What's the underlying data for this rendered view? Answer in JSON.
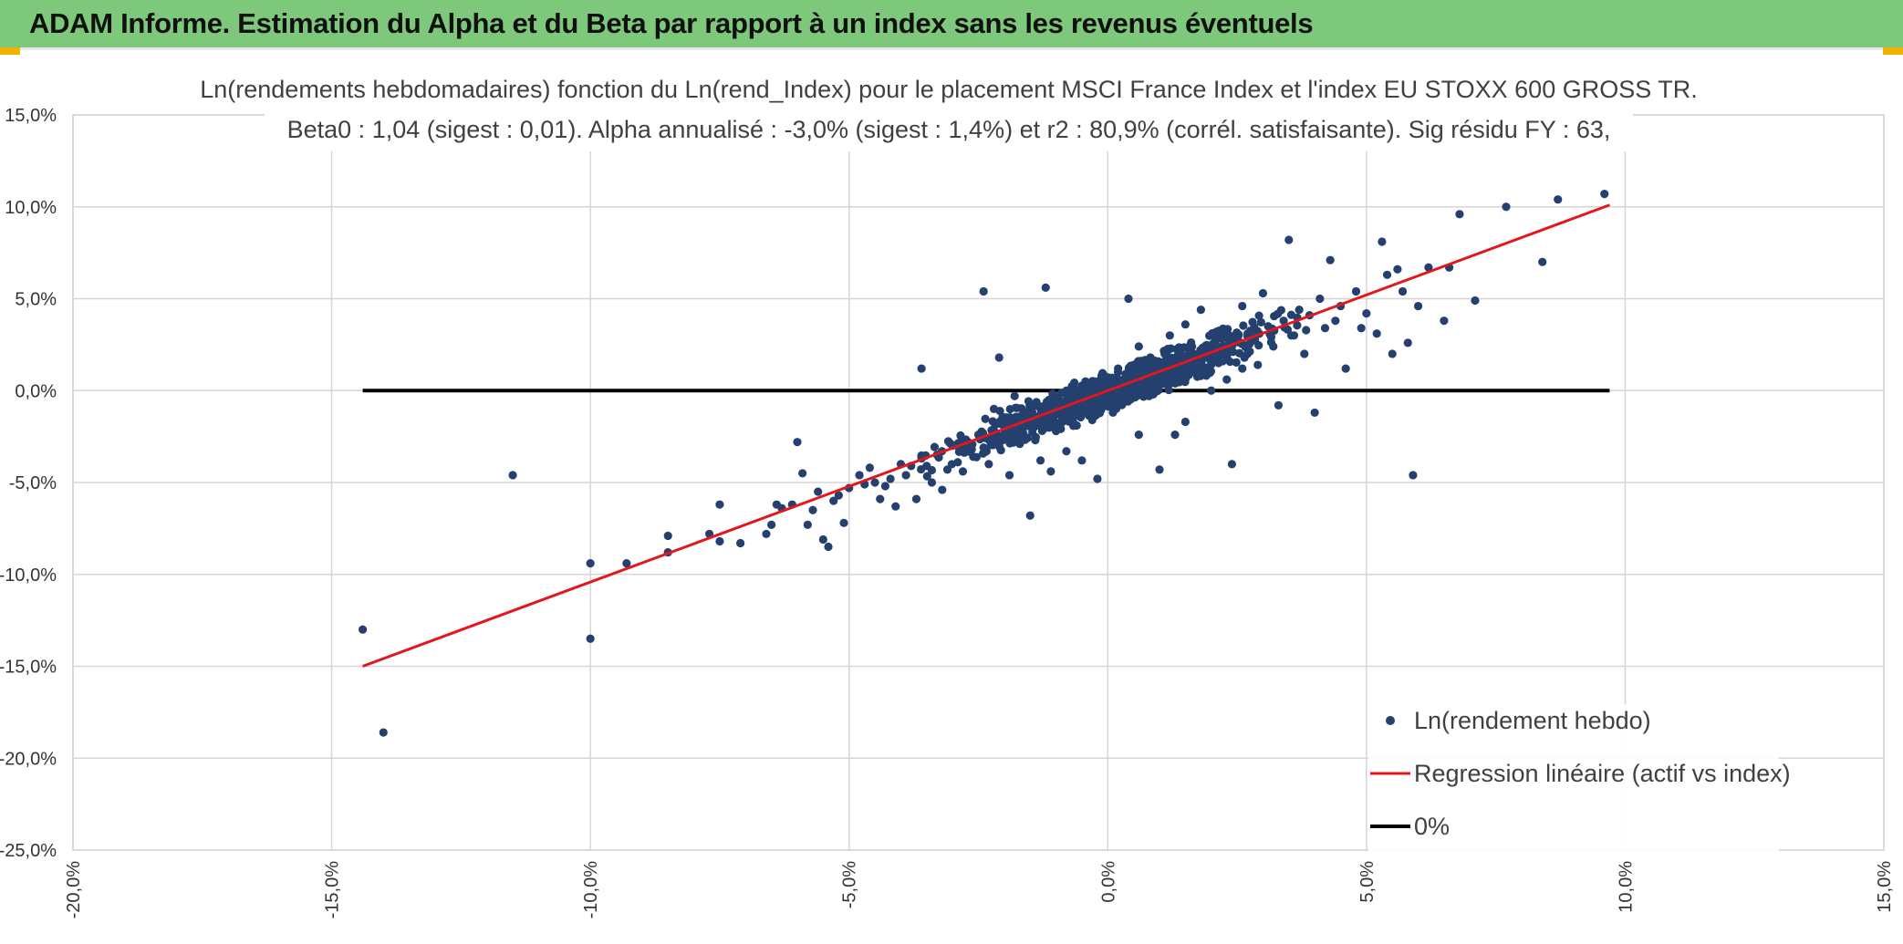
{
  "banner": {
    "title": "ADAM Informe. Estimation du Alpha et du Beta par rapport à un index sans les revenus éventuels",
    "background": "#7dc87a",
    "corner_color": "#f0b400"
  },
  "chart_data": {
    "type": "scatter",
    "title": "Ln(rendements hebdomadaires) fonction du Ln(rend_Index) pour le placement MSCI France Index et l'index EU STOXX 600 GROSS TR.",
    "subtitle": "Beta0 : 1,04 (sigest : 0,01). Alpha annualisé : -3,0% (sigest : 1,4%) et r2 : 80,9% (corrél. satisfaisante). Sig résidu FY : 63,",
    "xlim": [
      -0.2,
      0.15
    ],
    "ylim": [
      -0.25,
      0.15
    ],
    "x_ticks": [
      -0.2,
      -0.15,
      -0.1,
      -0.05,
      0.0,
      0.05,
      0.1,
      0.15
    ],
    "y_ticks": [
      -0.25,
      -0.2,
      -0.15,
      -0.1,
      -0.05,
      0.0,
      0.05,
      0.1,
      0.15
    ],
    "x_tick_labels": [
      "-20,0%",
      "-15,0%",
      "-10,0%",
      "-5,0%",
      "0,0%",
      "5,0%",
      "10,0%",
      "15,0%"
    ],
    "y_tick_labels": [
      "-25,0%",
      "-20,0%",
      "-15,0%",
      "-10,0%",
      "-5,0%",
      "0,0%",
      "5,0%",
      "10,0%",
      "15,0%"
    ],
    "grid": true,
    "legend_position": "bottom-right",
    "series": [
      {
        "name": "Ln(rendement hebdo)",
        "kind": "points",
        "color": "#24406e",
        "points": [
          [
            -0.144,
            -0.13
          ],
          [
            -0.14,
            -0.186
          ],
          [
            -0.115,
            -0.046
          ],
          [
            -0.1,
            -0.094
          ],
          [
            -0.1,
            -0.135
          ],
          [
            -0.093,
            -0.094
          ],
          [
            -0.085,
            -0.079
          ],
          [
            -0.085,
            -0.088
          ],
          [
            -0.077,
            -0.078
          ],
          [
            -0.075,
            -0.062
          ],
          [
            -0.075,
            -0.082
          ],
          [
            -0.071,
            -0.083
          ],
          [
            -0.066,
            -0.078
          ],
          [
            -0.065,
            -0.073
          ],
          [
            -0.064,
            -0.062
          ],
          [
            -0.063,
            -0.064
          ],
          [
            -0.061,
            -0.062
          ],
          [
            -0.06,
            -0.028
          ],
          [
            -0.059,
            -0.045
          ],
          [
            -0.058,
            -0.073
          ],
          [
            -0.057,
            -0.065
          ],
          [
            -0.056,
            -0.055
          ],
          [
            -0.055,
            -0.081
          ],
          [
            -0.054,
            -0.085
          ],
          [
            -0.053,
            -0.06
          ],
          [
            -0.052,
            -0.057
          ],
          [
            -0.051,
            -0.072
          ],
          [
            -0.05,
            -0.053
          ],
          [
            -0.048,
            -0.046
          ],
          [
            -0.047,
            -0.051
          ],
          [
            -0.046,
            -0.042
          ],
          [
            -0.045,
            -0.05
          ],
          [
            -0.044,
            -0.059
          ],
          [
            -0.043,
            -0.052
          ],
          [
            -0.042,
            -0.048
          ],
          [
            -0.041,
            -0.063
          ],
          [
            -0.04,
            -0.04
          ],
          [
            -0.039,
            -0.046
          ],
          [
            -0.038,
            -0.041
          ],
          [
            -0.037,
            -0.059
          ],
          [
            -0.036,
            -0.036
          ],
          [
            -0.035,
            -0.041
          ],
          [
            -0.034,
            -0.05
          ],
          [
            -0.033,
            -0.035
          ],
          [
            -0.036,
            0.012
          ],
          [
            -0.032,
            -0.054
          ],
          [
            -0.031,
            -0.043
          ],
          [
            -0.03,
            -0.03
          ],
          [
            -0.029,
            -0.039
          ],
          [
            -0.028,
            -0.044
          ],
          [
            -0.027,
            -0.028
          ],
          [
            -0.026,
            -0.036
          ],
          [
            -0.025,
            -0.024
          ],
          [
            -0.024,
            0.054
          ],
          [
            -0.024,
            -0.031
          ],
          [
            -0.023,
            -0.04
          ],
          [
            -0.022,
            -0.022
          ],
          [
            -0.021,
            0.018
          ],
          [
            -0.02,
            -0.025
          ],
          [
            -0.019,
            -0.046
          ],
          [
            -0.018,
            -0.02
          ],
          [
            -0.017,
            -0.029
          ],
          [
            -0.016,
            -0.019
          ],
          [
            -0.015,
            -0.068
          ],
          [
            -0.014,
            -0.027
          ],
          [
            -0.013,
            -0.038
          ],
          [
            -0.012,
            -0.014
          ],
          [
            -0.011,
            -0.044
          ],
          [
            -0.01,
            -0.022
          ],
          [
            -0.009,
            -0.017
          ],
          [
            -0.008,
            -0.033
          ],
          [
            -0.007,
            -0.008
          ],
          [
            -0.006,
            -0.019
          ],
          [
            -0.005,
            -0.038
          ],
          [
            -0.004,
            -0.002
          ],
          [
            -0.003,
            -0.016
          ],
          [
            -0.012,
            0.056
          ],
          [
            -0.002,
            -0.048
          ],
          [
            -0.001,
            -0.006
          ],
          [
            0.0,
            0.002
          ],
          [
            0.001,
            -0.012
          ],
          [
            0.002,
            0.012
          ],
          [
            0.003,
            -0.004
          ],
          [
            0.004,
            0.05
          ],
          [
            0.005,
            0.006
          ],
          [
            0.006,
            -0.024
          ],
          [
            0.007,
            0.015
          ],
          [
            0.008,
            -0.003
          ],
          [
            0.009,
            0.009
          ],
          [
            0.01,
            -0.043
          ],
          [
            0.011,
            0.02
          ],
          [
            0.012,
            0.004
          ],
          [
            0.013,
            -0.024
          ],
          [
            0.014,
            0.014
          ],
          [
            0.015,
            -0.017
          ],
          [
            0.016,
            0.025
          ],
          [
            0.017,
            0.01
          ],
          [
            0.018,
            0.044
          ],
          [
            0.019,
            0.018
          ],
          [
            0.02,
            0.0
          ],
          [
            0.021,
            0.032
          ],
          [
            0.022,
            0.022
          ],
          [
            0.023,
            0.006
          ],
          [
            0.024,
            -0.04
          ],
          [
            0.025,
            0.028
          ],
          [
            0.026,
            0.046
          ],
          [
            0.027,
            0.02
          ],
          [
            0.028,
            0.031
          ],
          [
            0.029,
            0.014
          ],
          [
            0.03,
            0.053
          ],
          [
            0.031,
            0.035
          ],
          [
            0.032,
            0.024
          ],
          [
            0.033,
            -0.008
          ],
          [
            0.034,
            0.038
          ],
          [
            0.035,
            0.082
          ],
          [
            0.036,
            0.03
          ],
          [
            0.037,
            0.044
          ],
          [
            0.038,
            0.02
          ],
          [
            0.039,
            0.041
          ],
          [
            0.04,
            -0.012
          ],
          [
            0.041,
            0.05
          ],
          [
            0.042,
            0.034
          ],
          [
            0.043,
            0.071
          ],
          [
            0.044,
            0.038
          ],
          [
            0.045,
            0.046
          ],
          [
            0.046,
            0.012
          ],
          [
            0.048,
            0.054
          ],
          [
            0.049,
            0.034
          ],
          [
            0.05,
            0.042
          ],
          [
            0.052,
            0.031
          ],
          [
            0.053,
            0.081
          ],
          [
            0.054,
            0.063
          ],
          [
            0.055,
            0.02
          ],
          [
            0.056,
            0.066
          ],
          [
            0.057,
            0.054
          ],
          [
            0.058,
            0.026
          ],
          [
            0.059,
            -0.046
          ],
          [
            0.06,
            0.046
          ],
          [
            0.062,
            0.067
          ],
          [
            0.065,
            0.038
          ],
          [
            0.066,
            0.067
          ],
          [
            0.068,
            0.096
          ],
          [
            0.071,
            0.049
          ],
          [
            0.077,
            0.1
          ],
          [
            0.084,
            0.07
          ],
          [
            0.087,
            0.104
          ],
          [
            0.096,
            0.107
          ],
          [
            -0.022,
            -0.01
          ],
          [
            -0.008,
            0.0
          ],
          [
            0.012,
            0.03
          ],
          [
            0.018,
            0.008
          ],
          [
            0.006,
            0.024
          ],
          [
            -0.018,
            -0.003
          ],
          [
            0.026,
            0.012
          ],
          [
            0.015,
            0.036
          ]
        ]
      },
      {
        "name": "Regression linéaire (actif vs index)",
        "kind": "line",
        "color": "#e3171b",
        "points": [
          [
            -0.144,
            -0.15
          ],
          [
            0.097,
            0.101
          ]
        ]
      },
      {
        "name": "0%",
        "kind": "line",
        "color": "#000000",
        "points": [
          [
            -0.144,
            0.0
          ],
          [
            0.097,
            0.0
          ]
        ]
      }
    ]
  }
}
